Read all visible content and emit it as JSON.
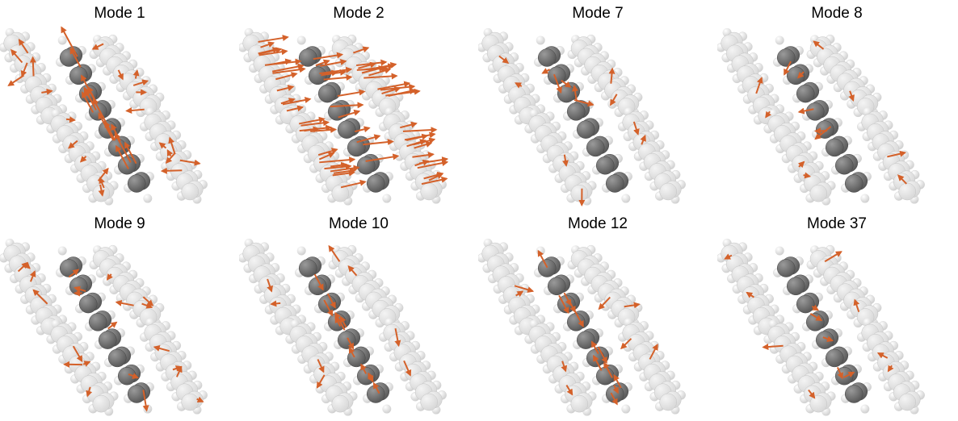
{
  "figure": {
    "panels": [
      {
        "title": "Mode 1",
        "style": "dense-parallel"
      },
      {
        "title": "Mode 2",
        "style": "dense-horizontal"
      },
      {
        "title": "Mode 7",
        "style": "sparse"
      },
      {
        "title": "Mode 8",
        "style": "sparse"
      },
      {
        "title": "Mode 9",
        "style": "medium"
      },
      {
        "title": "Mode 10",
        "style": "chain-parallel"
      },
      {
        "title": "Mode 12",
        "style": "chain-parallel"
      },
      {
        "title": "Mode 37",
        "style": "sparse"
      }
    ],
    "colors": {
      "highlight_atom": "#5a5a5a",
      "highlight_atom_light": "#9a9a9a",
      "neighbor_atom": "#d8d8d8",
      "neighbor_atom_light": "#f4f4f4",
      "hydrogen": "#f7f7f7",
      "arrow": "#d4612a"
    }
  }
}
